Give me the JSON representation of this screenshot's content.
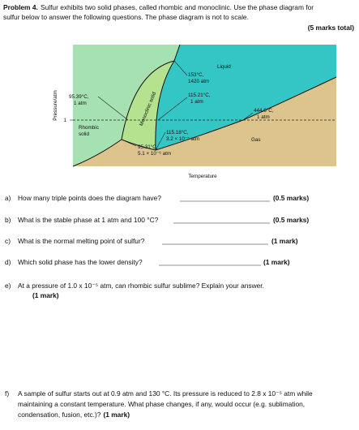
{
  "header": {
    "problem": "Problem 4.",
    "intro": [
      "Sulfur exhibits two solid phases, called rhombic and monoclinic.  Use the phase diagram for",
      "sulfur below to answer the following questions.  The phase diagram is not to scale."
    ],
    "total": "(5 marks total)"
  },
  "diagram": {
    "y_axis": "Pressure/atm",
    "x_axis": "Temperature",
    "one_atm": "1",
    "regions": {
      "liquid": "Liquid",
      "monoclinic": "Monoclinic solid",
      "rhombic": [
        "Rhombic",
        "solid"
      ],
      "gas": "Gas"
    },
    "points": {
      "p153": [
        "153°C,",
        "1420 atm"
      ],
      "p9539": [
        "95.39°C,",
        "1 atm"
      ],
      "p11521": [
        "115.21°C,",
        "1 atm"
      ],
      "p4446": [
        "444.6°C,",
        "1 atm"
      ],
      "p11518": [
        "115.18°C,",
        "3.2 × 10⁻⁵ atm"
      ],
      "p9531": [
        "95.31°C,",
        "5.1 × 10⁻⁶ atm"
      ]
    }
  },
  "questions": {
    "a": {
      "label": "a)",
      "text": "How many triple points does the diagram have?",
      "marks": "(0.5 marks)"
    },
    "b": {
      "label": "b)",
      "text": "What is the stable phase at 1 atm and 100 °C?",
      "marks": "(0.5 marks)"
    },
    "c": {
      "label": "c)",
      "text": "What is the normal melting point of sulfur?",
      "marks": "(1 mark)"
    },
    "d": {
      "label": "d)",
      "text": "Which solid phase has the lower density?",
      "marks": "(1 mark)"
    },
    "e": {
      "label": "e)",
      "text": "At a pressure of 1.0 x 10⁻⁵ atm, can rhombic sulfur sublime?  Explain your answer.",
      "marks": "(1 mark)"
    },
    "f": {
      "label": "f)",
      "lines": [
        "A sample of sulfur starts out at 0.9 atm and 130 °C. Its pressure is reduced to 2.8 x 10⁻⁵ atm while",
        "maintaining a constant temperature. What phase changes, if any, would occur (e.g. sublimation,",
        "condensation, fusion, etc.)?"
      ],
      "marks": "(1 mark)"
    }
  }
}
